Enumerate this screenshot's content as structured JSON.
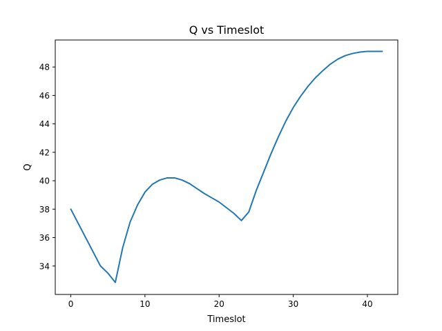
{
  "chart_data": {
    "type": "line",
    "title": "Q vs Timeslot",
    "xlabel": "Timeslot",
    "ylabel": "Q",
    "xlim": [
      -2.1,
      44.1
    ],
    "ylim": [
      32.0,
      49.9
    ],
    "xticks": [
      0,
      10,
      20,
      30,
      40
    ],
    "yticks": [
      34,
      36,
      38,
      40,
      42,
      44,
      46,
      48
    ],
    "grid": false,
    "series": [
      {
        "color": "#1f77b4",
        "x": [
          0,
          1,
          2,
          3,
          4,
          5,
          6,
          7,
          8,
          9,
          10,
          11,
          12,
          13,
          14,
          15,
          16,
          17,
          18,
          19,
          20,
          21,
          22,
          23,
          24,
          25,
          26,
          27,
          28,
          29,
          30,
          31,
          32,
          33,
          34,
          35,
          36,
          37,
          38,
          39,
          40,
          41,
          42
        ],
        "y": [
          38.0,
          37.0,
          36.0,
          35.0,
          34.0,
          33.5,
          32.85,
          35.3,
          37.1,
          38.3,
          39.2,
          39.75,
          40.05,
          40.2,
          40.2,
          40.05,
          39.8,
          39.45,
          39.1,
          38.8,
          38.5,
          38.1,
          37.7,
          37.2,
          37.8,
          39.3,
          40.6,
          41.9,
          43.1,
          44.2,
          45.15,
          45.95,
          46.65,
          47.25,
          47.75,
          48.2,
          48.55,
          48.8,
          48.95,
          49.05,
          49.1,
          49.1,
          49.1
        ]
      }
    ]
  }
}
